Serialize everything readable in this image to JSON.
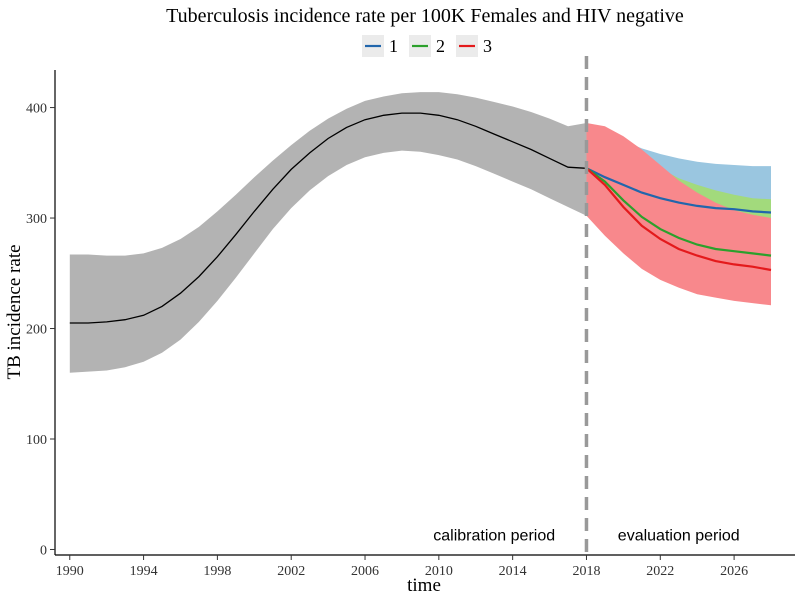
{
  "chart_data": {
    "type": "line",
    "title": "Tuberculosis incidence rate per 100K Females and HIV negative",
    "xlabel": "time",
    "ylabel": "TB incidence rate",
    "xlim": [
      1989.2,
      2029.3
    ],
    "ylim": [
      -5,
      434
    ],
    "x_ticks": [
      1990,
      1994,
      1998,
      2002,
      2006,
      2010,
      2014,
      2018,
      2022,
      2026
    ],
    "y_ticks": [
      0,
      100,
      200,
      300,
      400
    ],
    "grid": false,
    "legend": {
      "position": "top",
      "entries": [
        "1",
        "2",
        "3"
      ]
    },
    "annotations": [
      {
        "text": "calibration period",
        "x": 2013.0,
        "y": 8
      },
      {
        "text": "evaluation period",
        "x": 2023.0,
        "y": 8
      }
    ],
    "vline": {
      "x": 2018,
      "style": "dashed",
      "color": "#999999"
    },
    "calibration": {
      "color": "#000000",
      "band_color": "#b3b3b3",
      "x": [
        1990,
        1991,
        1992,
        1993,
        1994,
        1995,
        1996,
        1997,
        1998,
        1999,
        2000,
        2001,
        2002,
        2003,
        2004,
        2005,
        2006,
        2007,
        2008,
        2009,
        2010,
        2011,
        2012,
        2013,
        2014,
        2015,
        2016,
        2017,
        2018
      ],
      "mean": [
        205,
        205,
        206,
        208,
        212,
        220,
        232,
        247,
        265,
        285,
        306,
        326,
        344,
        359,
        372,
        382,
        389,
        393,
        395,
        395,
        393,
        389,
        383,
        376,
        369,
        362,
        354,
        346,
        345
      ],
      "lower": [
        160,
        161,
        162,
        165,
        170,
        178,
        190,
        206,
        225,
        246,
        268,
        290,
        309,
        325,
        338,
        348,
        355,
        359,
        361,
        360,
        357,
        353,
        347,
        340,
        333,
        326,
        318,
        310,
        302
      ],
      "upper": [
        267,
        267,
        266,
        266,
        268,
        273,
        281,
        292,
        306,
        321,
        337,
        352,
        366,
        379,
        390,
        399,
        406,
        410,
        413,
        414,
        414,
        412,
        409,
        405,
        401,
        396,
        390,
        383,
        386
      ]
    },
    "series": [
      {
        "name": "1",
        "color": "#2166ac",
        "band_color": "#9ac6e0",
        "x": [
          2018,
          2019,
          2020,
          2021,
          2022,
          2023,
          2024,
          2025,
          2026,
          2027,
          2028
        ],
        "values": [
          345,
          337,
          330,
          323,
          318,
          314,
          311,
          309,
          308,
          306,
          305
        ],
        "lower": [
          340,
          331,
          324,
          318,
          313,
          309,
          305,
          302,
          300,
          298,
          296
        ],
        "upper": [
          386,
          380,
          370,
          363,
          358,
          354,
          351,
          349,
          348,
          347,
          347
        ]
      },
      {
        "name": "2",
        "color": "#2ca02c",
        "band_color": "#a2da7c",
        "x": [
          2018,
          2019,
          2020,
          2021,
          2022,
          2023,
          2024,
          2025,
          2026,
          2027,
          2028
        ],
        "values": [
          345,
          333,
          316,
          301,
          290,
          282,
          276,
          272,
          270,
          268,
          266
        ],
        "lower": [
          340,
          328,
          311,
          297,
          286,
          278,
          272,
          268,
          266,
          264,
          263
        ],
        "upper": [
          386,
          381,
          369,
          356,
          345,
          336,
          330,
          325,
          321,
          318,
          317
        ]
      },
      {
        "name": "3",
        "color": "#e41a1c",
        "band_color": "#f8888c",
        "x": [
          2018,
          2019,
          2020,
          2021,
          2022,
          2023,
          2024,
          2025,
          2026,
          2027,
          2028
        ],
        "values": [
          345,
          330,
          310,
          293,
          281,
          272,
          266,
          261,
          258,
          256,
          253
        ],
        "lower": [
          302,
          284,
          268,
          254,
          244,
          237,
          231,
          228,
          225,
          223,
          221
        ],
        "upper": [
          386,
          383,
          374,
          362,
          348,
          334,
          323,
          314,
          307,
          303,
          300
        ]
      }
    ]
  }
}
